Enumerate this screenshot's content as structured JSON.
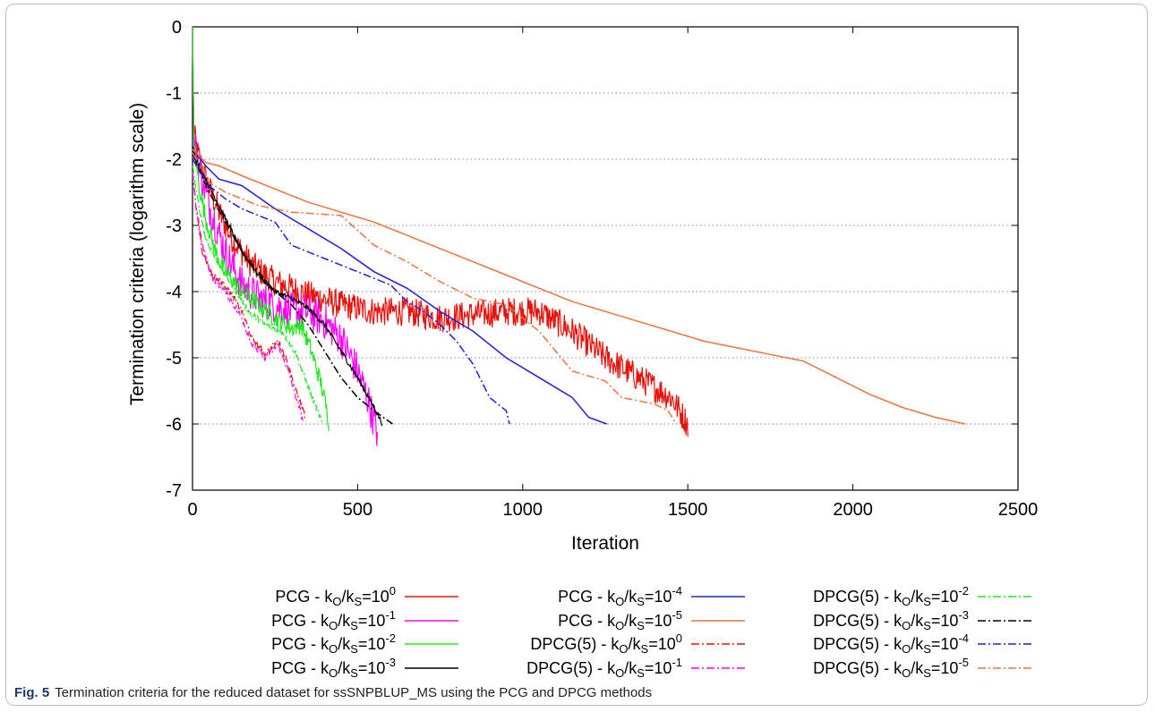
{
  "caption": {
    "label": "Fig. 5",
    "text": "Termination criteria for the reduced dataset for ssSNPBLUP_MS using the PCG and DPCG methods"
  },
  "chart_data": {
    "type": "line",
    "xlabel": "Iteration",
    "ylabel": "Termination criteria (logarithm scale)",
    "xlim": [
      0,
      2500
    ],
    "ylim": [
      -7,
      0
    ],
    "xticks": [
      "0",
      "500",
      "1000",
      "1500",
      "2000",
      "2500"
    ],
    "yticks": [
      "0",
      "-1",
      "-2",
      "-3",
      "-4",
      "-5",
      "-6",
      "-7"
    ],
    "grid": "horizontal dotted",
    "legend_placement": "bottom",
    "series": [
      {
        "method": "PCG",
        "exponent": "0",
        "color": "#e8120c",
        "dash": "solid",
        "noise": 0.22,
        "points": [
          [
            0,
            0
          ],
          [
            4,
            -1.6
          ],
          [
            15,
            -1.9
          ],
          [
            40,
            -2.3
          ],
          [
            80,
            -2.8
          ],
          [
            120,
            -3.2
          ],
          [
            180,
            -3.6
          ],
          [
            250,
            -3.85
          ],
          [
            350,
            -4.05
          ],
          [
            450,
            -4.2
          ],
          [
            550,
            -4.3
          ],
          [
            650,
            -4.3
          ],
          [
            750,
            -4.4
          ],
          [
            850,
            -4.35
          ],
          [
            950,
            -4.3
          ],
          [
            1050,
            -4.3
          ],
          [
            1150,
            -4.6
          ],
          [
            1250,
            -5.0
          ],
          [
            1350,
            -5.3
          ],
          [
            1450,
            -5.6
          ],
          [
            1500,
            -6.0
          ]
        ]
      },
      {
        "method": "PCG",
        "exponent": "-1",
        "color": "#ff00ff",
        "dash": "solid",
        "noise": 0.28,
        "points": [
          [
            0,
            0
          ],
          [
            4,
            -1.7
          ],
          [
            20,
            -2.1
          ],
          [
            50,
            -2.7
          ],
          [
            100,
            -3.4
          ],
          [
            150,
            -3.9
          ],
          [
            200,
            -4.1
          ],
          [
            250,
            -4.2
          ],
          [
            300,
            -4.3
          ],
          [
            350,
            -4.3
          ],
          [
            400,
            -4.45
          ],
          [
            450,
            -4.7
          ],
          [
            500,
            -5.2
          ],
          [
            530,
            -5.6
          ],
          [
            560,
            -6.15
          ]
        ]
      },
      {
        "method": "PCG",
        "exponent": "-2",
        "color": "#1ee81e",
        "dash": "solid",
        "noise": 0.14,
        "points": [
          [
            0,
            0
          ],
          [
            4,
            -1.8
          ],
          [
            20,
            -2.4
          ],
          [
            40,
            -2.9
          ],
          [
            70,
            -3.4
          ],
          [
            100,
            -3.7
          ],
          [
            150,
            -4.0
          ],
          [
            200,
            -4.2
          ],
          [
            250,
            -4.4
          ],
          [
            300,
            -4.55
          ],
          [
            330,
            -4.5
          ],
          [
            360,
            -4.9
          ],
          [
            390,
            -5.4
          ],
          [
            415,
            -6.0
          ]
        ]
      },
      {
        "method": "PCG",
        "exponent": "-3",
        "color": "#000000",
        "dash": "solid",
        "noise": 0.04,
        "points": [
          [
            0,
            -1.8
          ],
          [
            10,
            -2.0
          ],
          [
            50,
            -2.4
          ],
          [
            100,
            -2.9
          ],
          [
            150,
            -3.4
          ],
          [
            200,
            -3.75
          ],
          [
            250,
            -4.0
          ],
          [
            300,
            -4.1
          ],
          [
            350,
            -4.25
          ],
          [
            400,
            -4.5
          ],
          [
            450,
            -4.9
          ],
          [
            500,
            -5.3
          ],
          [
            550,
            -5.75
          ],
          [
            575,
            -6.0
          ]
        ]
      },
      {
        "method": "PCG",
        "exponent": "-4",
        "color": "#2020d8",
        "dash": "solid",
        "noise": 0,
        "points": [
          [
            0,
            -1.85
          ],
          [
            40,
            -2.1
          ],
          [
            80,
            -2.3
          ],
          [
            150,
            -2.4
          ],
          [
            250,
            -2.75
          ],
          [
            350,
            -3.05
          ],
          [
            450,
            -3.35
          ],
          [
            550,
            -3.7
          ],
          [
            650,
            -3.95
          ],
          [
            750,
            -4.3
          ],
          [
            850,
            -4.6
          ],
          [
            950,
            -5.0
          ],
          [
            1050,
            -5.3
          ],
          [
            1150,
            -5.6
          ],
          [
            1200,
            -5.9
          ],
          [
            1255,
            -6.0
          ]
        ]
      },
      {
        "method": "PCG",
        "exponent": "-5",
        "color": "#f0733a",
        "dash": "solid",
        "noise": 0,
        "points": [
          [
            0,
            -1.85
          ],
          [
            40,
            -2.05
          ],
          [
            80,
            -2.1
          ],
          [
            150,
            -2.25
          ],
          [
            250,
            -2.45
          ],
          [
            350,
            -2.65
          ],
          [
            450,
            -2.8
          ],
          [
            550,
            -2.95
          ],
          [
            650,
            -3.15
          ],
          [
            750,
            -3.35
          ],
          [
            850,
            -3.55
          ],
          [
            950,
            -3.75
          ],
          [
            1050,
            -3.95
          ],
          [
            1150,
            -4.15
          ],
          [
            1250,
            -4.3
          ],
          [
            1350,
            -4.45
          ],
          [
            1450,
            -4.6
          ],
          [
            1550,
            -4.75
          ],
          [
            1650,
            -4.85
          ],
          [
            1750,
            -4.95
          ],
          [
            1850,
            -5.05
          ],
          [
            1950,
            -5.3
          ],
          [
            2050,
            -5.55
          ],
          [
            2150,
            -5.75
          ],
          [
            2250,
            -5.9
          ],
          [
            2340,
            -6.0
          ]
        ]
      },
      {
        "method": "DPCG(5)",
        "exponent": "0",
        "color": "#e8120c",
        "dash": "dashdot",
        "noise": 0.05,
        "points": [
          [
            0,
            -2.2
          ],
          [
            10,
            -2.7
          ],
          [
            30,
            -3.4
          ],
          [
            60,
            -3.75
          ],
          [
            100,
            -3.9
          ],
          [
            150,
            -4.3
          ],
          [
            180,
            -4.7
          ],
          [
            220,
            -4.95
          ],
          [
            260,
            -4.75
          ],
          [
            290,
            -5.1
          ],
          [
            320,
            -5.6
          ],
          [
            345,
            -5.95
          ]
        ]
      },
      {
        "method": "DPCG(5)",
        "exponent": "-1",
        "color": "#ff00ff",
        "dash": "dashdot",
        "noise": 0.05,
        "points": [
          [
            0,
            -2.2
          ],
          [
            10,
            -2.7
          ],
          [
            30,
            -3.3
          ],
          [
            60,
            -3.8
          ],
          [
            100,
            -4.0
          ],
          [
            150,
            -4.4
          ],
          [
            180,
            -4.8
          ],
          [
            220,
            -5.0
          ],
          [
            260,
            -4.8
          ],
          [
            290,
            -5.2
          ],
          [
            320,
            -5.7
          ],
          [
            335,
            -5.95
          ]
        ]
      },
      {
        "method": "DPCG(5)",
        "exponent": "-2",
        "color": "#1ee81e",
        "dash": "dashdot",
        "noise": 0.05,
        "points": [
          [
            0,
            -2.1
          ],
          [
            15,
            -2.6
          ],
          [
            40,
            -3.2
          ],
          [
            80,
            -3.6
          ],
          [
            120,
            -3.9
          ],
          [
            170,
            -4.3
          ],
          [
            220,
            -4.5
          ],
          [
            270,
            -4.6
          ],
          [
            310,
            -4.9
          ],
          [
            340,
            -5.3
          ],
          [
            370,
            -5.7
          ],
          [
            395,
            -6.0
          ]
        ]
      },
      {
        "method": "DPCG(5)",
        "exponent": "-3",
        "color": "#000000",
        "dash": "dashdot",
        "noise": 0,
        "points": [
          [
            0,
            -1.9
          ],
          [
            15,
            -2.1
          ],
          [
            50,
            -2.5
          ],
          [
            100,
            -2.95
          ],
          [
            150,
            -3.4
          ],
          [
            200,
            -3.7
          ],
          [
            250,
            -4.0
          ],
          [
            300,
            -4.2
          ],
          [
            350,
            -4.5
          ],
          [
            400,
            -4.9
          ],
          [
            450,
            -5.3
          ],
          [
            500,
            -5.6
          ],
          [
            550,
            -5.8
          ],
          [
            606,
            -6.0
          ]
        ]
      },
      {
        "method": "DPCG(5)",
        "exponent": "-4",
        "color": "#2020d8",
        "dash": "dashdot",
        "noise": 0,
        "points": [
          [
            0,
            -2.0
          ],
          [
            50,
            -2.4
          ],
          [
            100,
            -2.6
          ],
          [
            150,
            -2.75
          ],
          [
            200,
            -2.85
          ],
          [
            250,
            -2.95
          ],
          [
            300,
            -3.3
          ],
          [
            400,
            -3.5
          ],
          [
            500,
            -3.7
          ],
          [
            600,
            -3.9
          ],
          [
            650,
            -4.15
          ],
          [
            700,
            -4.3
          ],
          [
            750,
            -4.5
          ],
          [
            800,
            -4.75
          ],
          [
            850,
            -5.1
          ],
          [
            900,
            -5.6
          ],
          [
            950,
            -5.8
          ],
          [
            960,
            -6.0
          ]
        ]
      },
      {
        "method": "DPCG(5)",
        "exponent": "-5",
        "color": "#f0733a",
        "dash": "dashdot",
        "noise": 0,
        "points": [
          [
            0,
            -1.9
          ],
          [
            50,
            -2.35
          ],
          [
            100,
            -2.5
          ],
          [
            150,
            -2.6
          ],
          [
            200,
            -2.7
          ],
          [
            300,
            -2.8
          ],
          [
            450,
            -2.85
          ],
          [
            550,
            -3.3
          ],
          [
            650,
            -3.55
          ],
          [
            750,
            -3.85
          ],
          [
            850,
            -4.1
          ],
          [
            950,
            -4.2
          ],
          [
            1050,
            -4.6
          ],
          [
            1100,
            -4.9
          ],
          [
            1150,
            -5.2
          ],
          [
            1250,
            -5.35
          ],
          [
            1300,
            -5.6
          ],
          [
            1400,
            -5.7
          ],
          [
            1440,
            -5.8
          ],
          [
            1465,
            -6.0
          ]
        ]
      }
    ]
  }
}
